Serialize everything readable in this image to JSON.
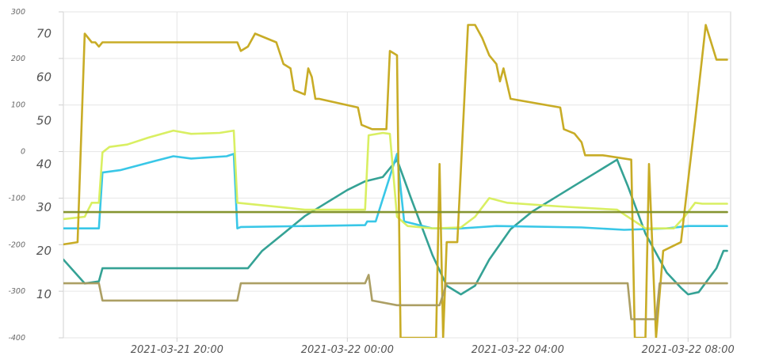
{
  "chart_data": {
    "type": "line",
    "x_type": "datetime",
    "x_range": [
      "2021-03-21 17:20",
      "2021-03-22 09:00"
    ],
    "x_ticks": [
      "2021-03-21 20:00",
      "2021-03-22 00:00",
      "2021-03-22 04:00",
      "2021-03-22 08:00"
    ],
    "y_left": {
      "range": [
        -400,
        300
      ],
      "ticks": [
        "300",
        "200",
        "100",
        "0",
        "-100",
        "-200",
        "-300",
        "-400"
      ],
      "tick_values": [
        300,
        200,
        100,
        0,
        -100,
        -200,
        -300,
        -400
      ]
    },
    "y_right": {
      "range": [
        0,
        75
      ],
      "ticks": [
        "70",
        "60",
        "50",
        "40",
        "30",
        "20",
        "10"
      ],
      "tick_values": [
        70,
        60,
        50,
        40,
        30,
        20,
        10
      ]
    },
    "grid": true,
    "series": [
      {
        "color": "#2a9d8f",
        "axis": "right",
        "points": [
          [
            "2021-03-21 17:20",
            18
          ],
          [
            "2021-03-21 17:50",
            12.5
          ],
          [
            "2021-03-21 18:10",
            13
          ],
          [
            "2021-03-21 18:15",
            16
          ],
          [
            "2021-03-21 21:40",
            16
          ],
          [
            "2021-03-21 22:00",
            20
          ],
          [
            "2021-03-21 22:30",
            24
          ],
          [
            "2021-03-21 23:00",
            28
          ],
          [
            "2021-03-21 23:30",
            31
          ],
          [
            "2021-03-22 00:00",
            34
          ],
          [
            "2021-03-22 00:25",
            36
          ],
          [
            "2021-03-22 00:50",
            37
          ],
          [
            "2021-03-22 01:10",
            41
          ],
          [
            "2021-03-22 01:30",
            32
          ],
          [
            "2021-03-22 02:00",
            19
          ],
          [
            "2021-03-22 02:20",
            12
          ],
          [
            "2021-03-22 02:40",
            10
          ],
          [
            "2021-03-22 03:00",
            12
          ],
          [
            "2021-03-22 03:20",
            18
          ],
          [
            "2021-03-22 03:50",
            25
          ],
          [
            "2021-03-22 04:20",
            29
          ],
          [
            "2021-03-22 04:50",
            32
          ],
          [
            "2021-03-22 05:20",
            35
          ],
          [
            "2021-03-22 05:50",
            38
          ],
          [
            "2021-03-22 06:20",
            41
          ],
          [
            "2021-03-22 06:35",
            35
          ],
          [
            "2021-03-22 07:00",
            24
          ],
          [
            "2021-03-22 07:30",
            15
          ],
          [
            "2021-03-22 07:50",
            11.5
          ],
          [
            "2021-03-22 08:00",
            10
          ],
          [
            "2021-03-22 08:15",
            10.5
          ],
          [
            "2021-03-22 08:40",
            16
          ],
          [
            "2021-03-22 08:50",
            20
          ],
          [
            "2021-03-22 08:55",
            20
          ]
        ]
      },
      {
        "color": "#2ec4e6",
        "axis": "left",
        "points": [
          [
            "2021-03-21 17:20",
            -165
          ],
          [
            "2021-03-21 18:10",
            -165
          ],
          [
            "2021-03-21 18:15",
            -45
          ],
          [
            "2021-03-21 18:40",
            -40
          ],
          [
            "2021-03-21 19:30",
            -20
          ],
          [
            "2021-03-21 19:55",
            -10
          ],
          [
            "2021-03-21 20:20",
            -15
          ],
          [
            "2021-03-21 21:10",
            -10
          ],
          [
            "2021-03-21 21:20",
            -5
          ],
          [
            "2021-03-21 21:25",
            -165
          ],
          [
            "2021-03-21 21:30",
            -162
          ],
          [
            "2021-03-22 00:25",
            -158
          ],
          [
            "2021-03-22 00:28",
            -150
          ],
          [
            "2021-03-22 00:40",
            -150
          ],
          [
            "2021-03-22 01:10",
            -5
          ],
          [
            "2021-03-22 01:20",
            -150
          ],
          [
            "2021-03-22 02:00",
            -165
          ],
          [
            "2021-03-22 02:40",
            -165
          ],
          [
            "2021-03-22 03:00",
            -163
          ],
          [
            "2021-03-22 03:30",
            -160
          ],
          [
            "2021-03-22 05:30",
            -163
          ],
          [
            "2021-03-22 06:30",
            -168
          ],
          [
            "2021-03-22 07:30",
            -165
          ],
          [
            "2021-03-22 08:00",
            -160
          ],
          [
            "2021-03-22 08:55",
            -160
          ]
        ]
      },
      {
        "color": "#d7ee5a",
        "axis": "left",
        "points": [
          [
            "2021-03-21 17:20",
            -145
          ],
          [
            "2021-03-21 17:50",
            -140
          ],
          [
            "2021-03-21 18:00",
            -110
          ],
          [
            "2021-03-21 18:10",
            -110
          ],
          [
            "2021-03-21 18:15",
            -2
          ],
          [
            "2021-03-21 18:25",
            10
          ],
          [
            "2021-03-21 18:50",
            15
          ],
          [
            "2021-03-21 19:20",
            30
          ],
          [
            "2021-03-21 19:55",
            45
          ],
          [
            "2021-03-21 20:20",
            38
          ],
          [
            "2021-03-21 21:00",
            40
          ],
          [
            "2021-03-21 21:20",
            45
          ],
          [
            "2021-03-21 21:25",
            -110
          ],
          [
            "2021-03-21 22:30",
            -120
          ],
          [
            "2021-03-21 23:00",
            -125
          ],
          [
            "2021-03-22 00:25",
            -125
          ],
          [
            "2021-03-22 00:30",
            35
          ],
          [
            "2021-03-22 00:50",
            40
          ],
          [
            "2021-03-22 01:00",
            38
          ],
          [
            "2021-03-22 01:10",
            -140
          ],
          [
            "2021-03-22 01:25",
            -160
          ],
          [
            "2021-03-22 02:00",
            -165
          ],
          [
            "2021-03-22 02:40",
            -163
          ],
          [
            "2021-03-22 03:00",
            -140
          ],
          [
            "2021-03-22 03:20",
            -100
          ],
          [
            "2021-03-22 03:45",
            -110
          ],
          [
            "2021-03-22 05:00",
            -118
          ],
          [
            "2021-03-22 06:20",
            -125
          ],
          [
            "2021-03-22 07:00",
            -165
          ],
          [
            "2021-03-22 07:40",
            -165
          ],
          [
            "2021-03-22 07:55",
            -140
          ],
          [
            "2021-03-22 08:10",
            -110
          ],
          [
            "2021-03-22 08:20",
            -112
          ],
          [
            "2021-03-22 08:55",
            -112
          ]
        ]
      },
      {
        "color": "#c5a81a",
        "axis": "right",
        "points": [
          [
            "2021-03-21 17:20",
            21.5
          ],
          [
            "2021-03-21 17:40",
            22
          ],
          [
            "2021-03-21 17:50",
            70
          ],
          [
            "2021-03-21 18:00",
            68
          ],
          [
            "2021-03-21 18:05",
            68
          ],
          [
            "2021-03-21 18:10",
            67
          ],
          [
            "2021-03-21 18:15",
            68
          ],
          [
            "2021-03-21 21:25",
            68
          ],
          [
            "2021-03-21 21:30",
            66
          ],
          [
            "2021-03-21 21:40",
            67
          ],
          [
            "2021-03-21 21:50",
            70
          ],
          [
            "2021-03-21 22:20",
            68
          ],
          [
            "2021-03-21 22:30",
            63
          ],
          [
            "2021-03-21 22:40",
            62
          ],
          [
            "2021-03-21 22:45",
            57
          ],
          [
            "2021-03-21 23:00",
            56
          ],
          [
            "2021-03-21 23:05",
            62
          ],
          [
            "2021-03-21 23:10",
            60
          ],
          [
            "2021-03-21 23:15",
            55
          ],
          [
            "2021-03-21 23:20",
            55
          ],
          [
            "2021-03-22 00:15",
            53
          ],
          [
            "2021-03-22 00:20",
            49
          ],
          [
            "2021-03-22 00:35",
            48
          ],
          [
            "2021-03-22 00:55",
            48
          ],
          [
            "2021-03-22 01:00",
            66
          ],
          [
            "2021-03-22 01:10",
            65
          ],
          [
            "2021-03-22 01:15",
            0
          ],
          [
            "2021-03-22 02:05",
            0
          ],
          [
            "2021-03-22 02:10",
            40
          ],
          [
            "2021-03-22 02:15",
            0
          ],
          [
            "2021-03-22 02:20",
            22
          ],
          [
            "2021-03-22 02:35",
            22
          ],
          [
            "2021-03-22 02:50",
            72
          ],
          [
            "2021-03-22 03:00",
            72
          ],
          [
            "2021-03-22 03:10",
            69
          ],
          [
            "2021-03-22 03:20",
            65
          ],
          [
            "2021-03-22 03:30",
            63
          ],
          [
            "2021-03-22 03:35",
            59
          ],
          [
            "2021-03-22 03:40",
            62
          ],
          [
            "2021-03-22 03:50",
            55
          ],
          [
            "2021-03-22 05:00",
            53
          ],
          [
            "2021-03-22 05:05",
            48
          ],
          [
            "2021-03-22 05:20",
            47
          ],
          [
            "2021-03-22 05:30",
            45
          ],
          [
            "2021-03-22 05:35",
            42
          ],
          [
            "2021-03-22 06:00",
            42
          ],
          [
            "2021-03-22 06:40",
            41
          ],
          [
            "2021-03-22 06:45",
            0
          ],
          [
            "2021-03-22 07:00",
            0
          ],
          [
            "2021-03-22 07:05",
            40
          ],
          [
            "2021-03-22 07:15",
            0
          ],
          [
            "2021-03-22 07:25",
            20
          ],
          [
            "2021-03-22 07:50",
            22
          ],
          [
            "2021-03-22 08:10",
            50
          ],
          [
            "2021-03-22 08:25",
            72
          ],
          [
            "2021-03-22 08:40",
            64
          ],
          [
            "2021-03-22 08:55",
            64
          ]
        ]
      },
      {
        "color": "#a89a5c",
        "axis": "left",
        "points": [
          [
            "2021-03-21 17:20",
            -283
          ],
          [
            "2021-03-21 18:10",
            -283
          ],
          [
            "2021-03-21 18:15",
            -320
          ],
          [
            "2021-03-21 21:25",
            -320
          ],
          [
            "2021-03-21 21:30",
            -283
          ],
          [
            "2021-03-22 00:25",
            -283
          ],
          [
            "2021-03-22 00:30",
            -265
          ],
          [
            "2021-03-22 00:35",
            -320
          ],
          [
            "2021-03-22 01:10",
            -330
          ],
          [
            "2021-03-22 02:10",
            -330
          ],
          [
            "2021-03-22 02:20",
            -283
          ],
          [
            "2021-03-22 06:35",
            -283
          ],
          [
            "2021-03-22 06:40",
            -360
          ],
          [
            "2021-03-22 07:15",
            -360
          ],
          [
            "2021-03-22 07:20",
            -283
          ],
          [
            "2021-03-22 08:55",
            -283
          ]
        ]
      },
      {
        "color": "#7f8f26",
        "axis": "left",
        "points": [
          [
            "2021-03-21 17:20",
            -130
          ],
          [
            "2021-03-22 08:55",
            -130
          ]
        ]
      }
    ]
  }
}
